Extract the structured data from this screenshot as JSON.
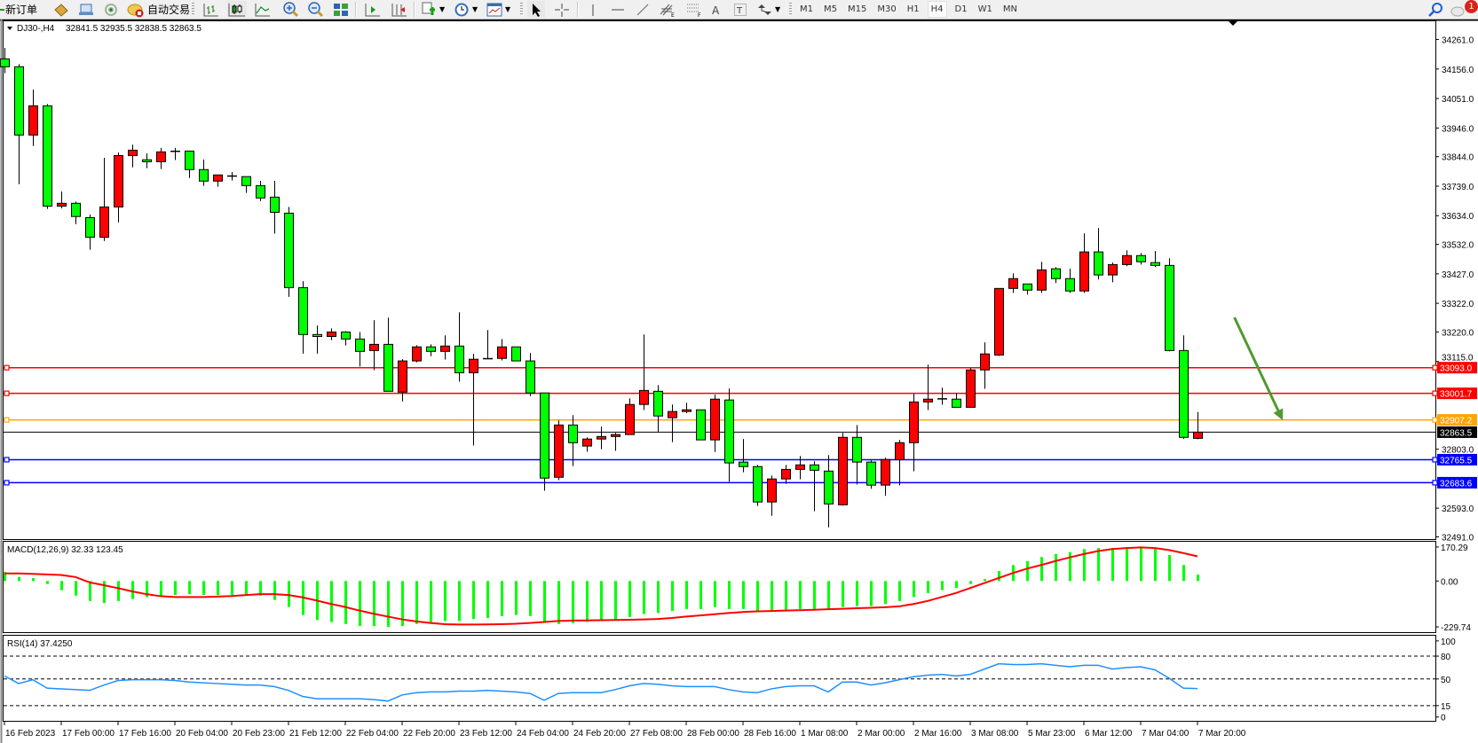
{
  "toolbar": {
    "new_order": "新订单",
    "auto_trading": "自动交易",
    "timeframes": [
      "M1",
      "M5",
      "M15",
      "M30",
      "H1",
      "H4",
      "D1",
      "W1",
      "MN"
    ],
    "active_timeframe": "H4",
    "notification_count": "1",
    "icons": [
      "new-order-icon",
      "market-watch-icon",
      "navigator-icon",
      "signals-icon",
      "auto-trading-icon",
      "bar-chart-icon",
      "candlestick-icon",
      "line-chart-icon",
      "zoom-in-icon",
      "zoom-out-icon",
      "tile-windows-icon",
      "auto-scroll-icon",
      "chart-shift-icon",
      "new-chart-icon",
      "periods-icon",
      "templates-icon",
      "cursor-icon",
      "crosshair-icon",
      "vertical-line-icon",
      "horizontal-line-icon",
      "trendline-icon",
      "equidistant-channel-icon",
      "fibonacci-icon",
      "text-icon",
      "text-label-icon",
      "arrows-icon",
      "search-icon",
      "chat-icon"
    ]
  },
  "chart_header": {
    "symbol": "DJ30-,H4",
    "ohlc": "32841.5 32935.5 32838.5 32863.5"
  },
  "chart_data": {
    "type": "candlestick",
    "symbol": "DJ30-",
    "timeframe": "H4",
    "up_color": "#ff0000",
    "down_color": "#00ff00",
    "ylim": [
      32483,
      34329
    ],
    "y_ticks": [
      "34261.0",
      "34156.0",
      "34051.0",
      "33946.0",
      "33844.0",
      "33739.0",
      "33634.0",
      "33532.0",
      "33427.0",
      "33322.0",
      "33220.0",
      "33115.0",
      "32803.0",
      "32593.0",
      "32491.0"
    ],
    "ohlc": [
      [
        34192,
        34231,
        34141,
        34164
      ],
      [
        34164,
        34173,
        33746,
        33921
      ],
      [
        33921,
        34083,
        33882,
        34025
      ],
      [
        34025,
        34031,
        33658,
        33668
      ],
      [
        33668,
        33720,
        33660,
        33678
      ],
      [
        33678,
        33684,
        33604,
        33631
      ],
      [
        33627,
        33638,
        33513,
        33557
      ],
      [
        33557,
        33840,
        33544,
        33665
      ],
      [
        33665,
        33859,
        33610,
        33848
      ],
      [
        33848,
        33887,
        33806,
        33867
      ],
      [
        33833,
        33856,
        33803,
        33826
      ],
      [
        33826,
        33875,
        33800,
        33861
      ],
      [
        33863,
        33875,
        33832,
        33862
      ],
      [
        33864,
        33864,
        33768,
        33798
      ],
      [
        33798,
        33834,
        33740,
        33757
      ],
      [
        33757,
        33779,
        33737,
        33779
      ],
      [
        33775,
        33789,
        33759,
        33774
      ],
      [
        33773,
        33773,
        33715,
        33741
      ],
      [
        33741,
        33758,
        33686,
        33697
      ],
      [
        33700,
        33758,
        33570,
        33646
      ],
      [
        33643,
        33665,
        33345,
        33378
      ],
      [
        33378,
        33401,
        33143,
        33211
      ],
      [
        33211,
        33243,
        33143,
        33204
      ],
      [
        33204,
        33233,
        33191,
        33220
      ],
      [
        33220,
        33223,
        33172,
        33195
      ],
      [
        33195,
        33220,
        33097,
        33151
      ],
      [
        33154,
        33262,
        33084,
        33176
      ],
      [
        33176,
        33271,
        33009,
        33009
      ],
      [
        33006,
        33123,
        32973,
        33117
      ],
      [
        33117,
        33173,
        33112,
        33167
      ],
      [
        33167,
        33176,
        33134,
        33151
      ],
      [
        33151,
        33208,
        33122,
        33170
      ],
      [
        33170,
        33290,
        33043,
        33075
      ],
      [
        33075,
        33142,
        32816,
        33123
      ],
      [
        33124,
        33227,
        33124,
        33125
      ],
      [
        33126,
        33195,
        33119,
        33167
      ],
      [
        33167,
        33167,
        33117,
        33117
      ],
      [
        33117,
        33145,
        32992,
        33003
      ],
      [
        33003,
        33003,
        32655,
        32700
      ],
      [
        32703,
        32905,
        32693,
        32889
      ],
      [
        32889,
        32924,
        32743,
        32826
      ],
      [
        32814,
        32845,
        32794,
        32839
      ],
      [
        32839,
        32883,
        32803,
        32848
      ],
      [
        32848,
        32861,
        32797,
        32855
      ],
      [
        32855,
        32984,
        32855,
        32962
      ],
      [
        32962,
        33211,
        32942,
        33012
      ],
      [
        33009,
        33031,
        32864,
        32921
      ],
      [
        32915,
        32962,
        32828,
        32937
      ],
      [
        32937,
        32968,
        32931,
        32943
      ],
      [
        32943,
        32943,
        32836,
        32836
      ],
      [
        32836,
        32997,
        32793,
        32981
      ],
      [
        32978,
        33019,
        32687,
        32754
      ],
      [
        32757,
        32839,
        32721,
        32741
      ],
      [
        32741,
        32747,
        32601,
        32615
      ],
      [
        32615,
        32709,
        32566,
        32697
      ],
      [
        32697,
        32747,
        32680,
        32731
      ],
      [
        32731,
        32779,
        32696,
        32747
      ],
      [
        32747,
        32760,
        32582,
        32728
      ],
      [
        32725,
        32782,
        32525,
        32608
      ],
      [
        32605,
        32861,
        32602,
        32845
      ],
      [
        32845,
        32889,
        32677,
        32757
      ],
      [
        32757,
        32763,
        32662,
        32675
      ],
      [
        32675,
        32773,
        32637,
        32766
      ],
      [
        32766,
        32836,
        32674,
        32826
      ],
      [
        32826,
        33000,
        32724,
        32971
      ],
      [
        32971,
        33104,
        32942,
        32981
      ],
      [
        32981,
        33022,
        32961,
        32982
      ],
      [
        32981,
        33003,
        32952,
        32952
      ],
      [
        32952,
        33091,
        32952,
        33085
      ],
      [
        33085,
        33183,
        33018,
        33142
      ],
      [
        33138,
        33375,
        33135,
        33375
      ],
      [
        33375,
        33429,
        33359,
        33410
      ],
      [
        33391,
        33391,
        33353,
        33369
      ],
      [
        33369,
        33470,
        33359,
        33441
      ],
      [
        33445,
        33451,
        33394,
        33410
      ],
      [
        33410,
        33445,
        33359,
        33366
      ],
      [
        33366,
        33571,
        33359,
        33505
      ],
      [
        33505,
        33590,
        33407,
        33423
      ],
      [
        33423,
        33467,
        33397,
        33460
      ],
      [
        33460,
        33511,
        33454,
        33492
      ],
      [
        33492,
        33501,
        33460,
        33470
      ],
      [
        33467,
        33508,
        33451,
        33457
      ],
      [
        33457,
        33482,
        33151,
        33154
      ],
      [
        33154,
        33208,
        32839,
        32845
      ],
      [
        32841.5,
        32935.5,
        32838.5,
        32863.5
      ]
    ],
    "horizontal_lines": [
      {
        "price": 33093.0,
        "label": "33093.0",
        "color": "#ff0000"
      },
      {
        "price": 33001.7,
        "label": "33001.7",
        "color": "#ff0000"
      },
      {
        "price": 32907.2,
        "label": "32907.2",
        "color": "#ffa500"
      },
      {
        "price": 32765.5,
        "label": "32765.5",
        "color": "#0000ff"
      },
      {
        "price": 32683.6,
        "label": "32683.6",
        "color": "#0000ff"
      }
    ],
    "bid_line": {
      "price": 32863.5,
      "label": "32863.5",
      "color": "#000000"
    },
    "arrow": {
      "from": {
        "bar": 86.6,
        "price": 33272
      },
      "to": {
        "bar": 90,
        "price": 32906
      },
      "color": "#4f9a2f"
    },
    "time_labels": [
      {
        "bar": 0,
        "label": "16 Feb 2023"
      },
      {
        "bar": 4,
        "label": "17 Feb 00:00"
      },
      {
        "bar": 8,
        "label": "17 Feb 16:00"
      },
      {
        "bar": 12,
        "label": "20 Feb 04:00"
      },
      {
        "bar": 16,
        "label": "20 Feb 23:00"
      },
      {
        "bar": 20,
        "label": "21 Feb 12:00"
      },
      {
        "bar": 24,
        "label": "22 Feb 04:00"
      },
      {
        "bar": 28,
        "label": "22 Feb 20:00"
      },
      {
        "bar": 32,
        "label": "23 Feb 12:00"
      },
      {
        "bar": 36,
        "label": "24 Feb 04:00"
      },
      {
        "bar": 40,
        "label": "24 Feb 20:00"
      },
      {
        "bar": 44,
        "label": "27 Feb 08:00"
      },
      {
        "bar": 48,
        "label": "28 Feb 00:00"
      },
      {
        "bar": 52,
        "label": "28 Feb 16:00"
      },
      {
        "bar": 56,
        "label": "1 Mar 08:00"
      },
      {
        "bar": 60,
        "label": "2 Mar 00:00"
      },
      {
        "bar": 64,
        "label": "2 Mar 16:00"
      },
      {
        "bar": 68,
        "label": "3 Mar 08:00"
      },
      {
        "bar": 72,
        "label": "5 Mar 23:00"
      },
      {
        "bar": 76,
        "label": "6 Mar 12:00"
      },
      {
        "bar": 80,
        "label": "7 Mar 04:00"
      },
      {
        "bar": 84,
        "label": "7 Mar 20:00"
      }
    ],
    "macd": {
      "label": "MACD(12,26,9) 32.33 123.45",
      "ylim": [
        -256,
        201
      ],
      "ticks": [
        {
          "value": 170.29,
          "label": "170.29"
        },
        {
          "value": 0,
          "label": "0.00"
        },
        {
          "value": -229.74,
          "label": "-229.74"
        }
      ],
      "histogram_color": "#00ff00",
      "signal_color": "#ff0000",
      "histogram": [
        45,
        20,
        15,
        -15,
        -46,
        -73,
        -100,
        -110,
        -100,
        -90,
        -80,
        -73,
        -70,
        -66,
        -70,
        -70,
        -70,
        -66,
        -73,
        -95,
        -130,
        -170,
        -195,
        -205,
        -215,
        -225,
        -225,
        -230,
        -225,
        -215,
        -205,
        -200,
        -200,
        -190,
        -185,
        -175,
        -170,
        -175,
        -210,
        -215,
        -210,
        -205,
        -200,
        -195,
        -180,
        -165,
        -160,
        -150,
        -140,
        -140,
        -130,
        -140,
        -140,
        -150,
        -150,
        -145,
        -140,
        -140,
        -145,
        -130,
        -125,
        -125,
        -115,
        -100,
        -80,
        -60,
        -45,
        -35,
        -15,
        10,
        50,
        80,
        100,
        120,
        135,
        145,
        160,
        165,
        165,
        170,
        168,
        165,
        130,
        80,
        32.33
      ],
      "signal": [
        38,
        38,
        36,
        33,
        30,
        20,
        -7,
        -21,
        -36,
        -52,
        -66,
        -76,
        -80,
        -80,
        -80,
        -78,
        -75,
        -70,
        -66,
        -66,
        -70,
        -82,
        -98,
        -115,
        -130,
        -148,
        -164,
        -178,
        -192,
        -202,
        -210,
        -216,
        -218,
        -218,
        -217,
        -216,
        -214,
        -210,
        -205,
        -200,
        -198,
        -197,
        -196,
        -195,
        -194,
        -192,
        -190,
        -185,
        -178,
        -172,
        -166,
        -160,
        -155,
        -152,
        -150,
        -148,
        -146,
        -144,
        -141,
        -139,
        -136,
        -134,
        -131,
        -127,
        -115,
        -100,
        -80,
        -60,
        -35,
        -10,
        15,
        40,
        62,
        80,
        100,
        118,
        135,
        150,
        160,
        165,
        168,
        165,
        155,
        140,
        123.45
      ]
    },
    "rsi": {
      "label": "RSI(14) 37.4250",
      "ylim": [
        -5,
        108
      ],
      "levels": [
        80,
        50,
        15
      ],
      "ticks": [
        {
          "value": 100,
          "label": "100"
        },
        {
          "value": 80,
          "label": "80"
        },
        {
          "value": 50,
          "label": "50"
        },
        {
          "value": 15,
          "label": "15"
        },
        {
          "value": 0,
          "label": "0"
        }
      ],
      "color": "#1e90ff",
      "values": [
        54,
        44,
        49,
        38,
        37,
        36,
        35,
        42,
        48,
        49,
        49,
        49,
        48,
        46,
        45,
        44,
        43,
        42,
        42,
        40,
        35,
        27,
        24,
        24,
        24,
        24,
        23,
        21,
        29,
        32,
        33,
        33,
        34,
        34,
        35,
        34,
        33,
        31,
        22,
        31,
        32,
        32,
        32,
        36,
        41,
        44,
        43,
        41,
        40,
        40,
        40,
        36,
        33,
        32,
        37,
        40,
        41,
        41,
        33,
        46,
        46,
        42,
        45,
        49,
        53,
        55,
        56,
        54,
        56,
        63,
        70,
        69,
        69,
        70,
        68,
        66,
        68,
        68,
        63,
        65,
        66,
        62,
        51,
        38,
        37.425
      ]
    }
  }
}
